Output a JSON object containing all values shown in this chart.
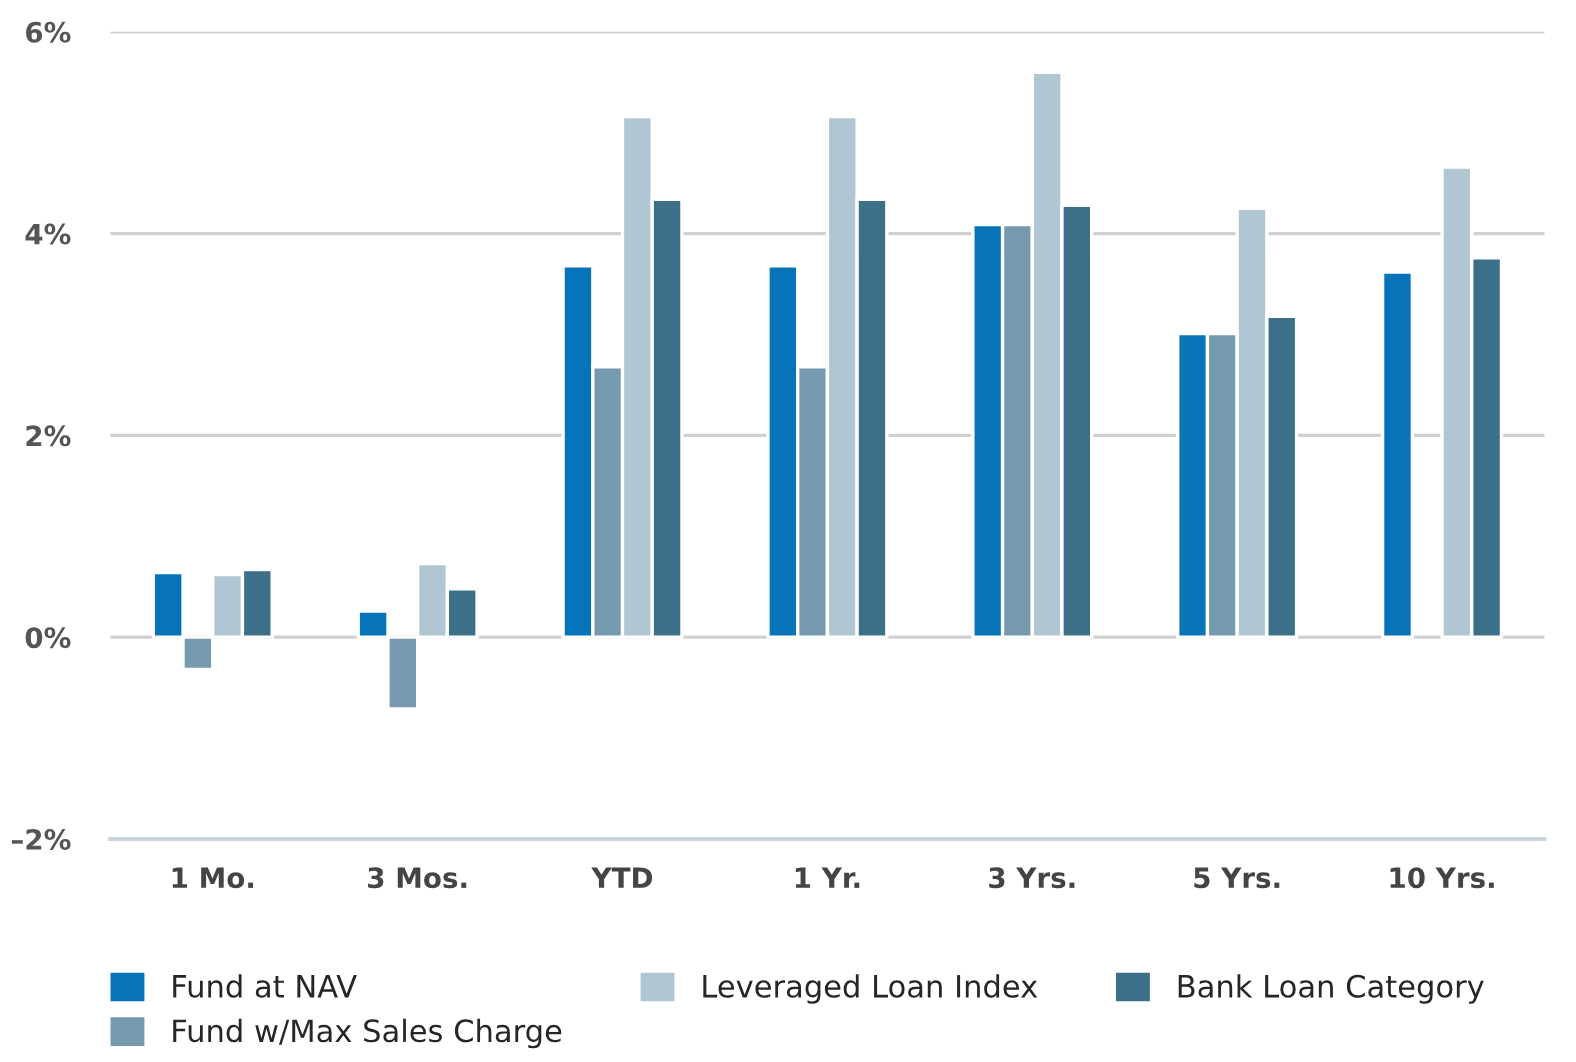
{
  "chart_data": {
    "type": "bar",
    "categories": [
      "1 Mo.",
      "3 Mos.",
      "YTD",
      "1 Yr.",
      "3 Yrs.",
      "5 Yrs.",
      "10 Yrs."
    ],
    "series": [
      {
        "name": "Fund at NAV",
        "color": "#0773b9",
        "values": [
          0.64,
          0.26,
          3.68,
          3.68,
          4.09,
          3.01,
          3.62
        ]
      },
      {
        "name": "Fund w/Max Sales Charge",
        "color": "#7599ae",
        "values": [
          -0.32,
          -0.71,
          2.68,
          2.68,
          4.09,
          3.01,
          null
        ]
      },
      {
        "name": "Leveraged Loan Index",
        "color": "#b0c7d3",
        "values": [
          0.62,
          0.73,
          5.16,
          5.16,
          5.6,
          4.25,
          4.66
        ]
      },
      {
        "name": "Bank Loan Category",
        "color": "#3c7089",
        "values": [
          0.67,
          0.48,
          4.34,
          4.34,
          4.28,
          3.18,
          3.76
        ]
      }
    ],
    "ylim": [
      -2,
      6
    ],
    "yticks": [
      {
        "value": -2,
        "label": "–2%"
      },
      {
        "value": 0,
        "label": "0%"
      },
      {
        "value": 2,
        "label": "2%"
      },
      {
        "value": 4,
        "label": "4%"
      },
      {
        "value": 6,
        "label": "6%"
      }
    ],
    "grid": "y",
    "legend": "bottom"
  }
}
